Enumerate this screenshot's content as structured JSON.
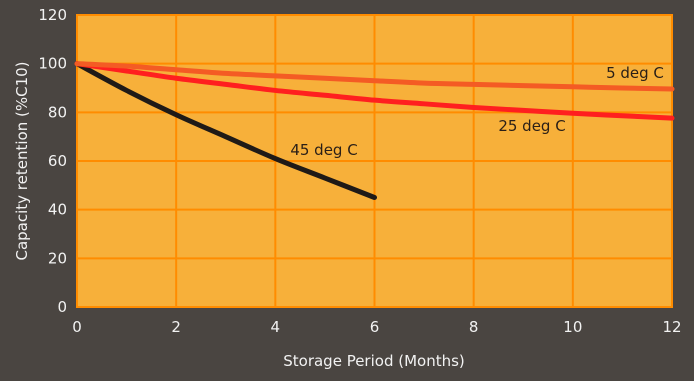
{
  "chart_data": {
    "type": "line",
    "xlabel": "Storage Period (Months)",
    "ylabel": "Capacity retention (%C10)",
    "xlim": [
      0,
      12
    ],
    "ylim": [
      0,
      120
    ],
    "xticks": [
      0,
      2,
      4,
      6,
      8,
      10,
      12
    ],
    "yticks": [
      0,
      20,
      40,
      60,
      80,
      100,
      120
    ],
    "grid": true,
    "plot_background": "#f7b03a",
    "grid_color": "#ff8c00",
    "series": [
      {
        "name": "45 deg C",
        "color": "#1f1a17",
        "x": [
          0,
          1,
          2,
          3,
          4,
          5,
          6
        ],
        "y": [
          100,
          89,
          79,
          70,
          61,
          53,
          45
        ]
      },
      {
        "name": "25 deg C",
        "color": "#ff1f1f",
        "x": [
          0,
          1,
          2,
          3,
          4,
          5,
          6,
          7,
          8,
          9,
          10,
          11,
          12
        ],
        "y": [
          100,
          97,
          94,
          91.5,
          89,
          87,
          85,
          83.5,
          82,
          80.8,
          79.6,
          78.6,
          77.6
        ]
      },
      {
        "name": "5 deg C",
        "color": "#f45b24",
        "x": [
          0,
          1,
          2,
          3,
          4,
          5,
          6,
          7,
          8,
          9,
          10,
          11,
          12
        ],
        "y": [
          100,
          99,
          97.5,
          96,
          95,
          94,
          93,
          92,
          91.5,
          91,
          90.5,
          90,
          89.6
        ]
      }
    ]
  }
}
